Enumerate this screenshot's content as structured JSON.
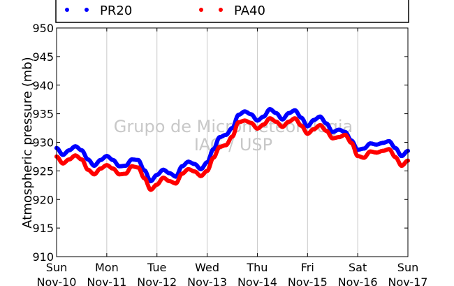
{
  "chart_data": {
    "type": "line",
    "title": "",
    "xlabel": "",
    "ylabel": "Atmospheric pressure (mb)",
    "ylim": [
      910,
      950
    ],
    "yticks": [
      910,
      915,
      920,
      925,
      930,
      935,
      940,
      945,
      950
    ],
    "xlim": [
      0,
      7
    ],
    "x_ticks": [
      {
        "day": "Sun",
        "date": "Nov-10"
      },
      {
        "day": "Mon",
        "date": "Nov-11"
      },
      {
        "day": "Tue",
        "date": "Nov-12"
      },
      {
        "day": "Wed",
        "date": "Nov-13"
      },
      {
        "day": "Thu",
        "date": "Nov-14"
      },
      {
        "day": "Fri",
        "date": "Nov-15"
      },
      {
        "day": "Sat",
        "date": "Nov-16"
      },
      {
        "day": "Sun",
        "date": "Nov-17"
      }
    ],
    "grid": "vertical",
    "legend_position": "top",
    "watermark": [
      "Grupo de Micrometeorologia",
      "IAG / USP"
    ],
    "series": [
      {
        "name": "PR20",
        "color": "#0000ff",
        "x": [
          "Nov-10 00:00",
          "Nov-10 03:00",
          "Nov-10 06:00",
          "Nov-10 09:00",
          "Nov-10 12:00",
          "Nov-10 15:00",
          "Nov-10 18:00",
          "Nov-10 21:00",
          "Nov-11 00:00",
          "Nov-11 03:00",
          "Nov-11 06:00",
          "Nov-11 09:00",
          "Nov-11 12:00",
          "Nov-11 15:00",
          "Nov-11 18:00",
          "Nov-11 21:00",
          "Nov-12 00:00",
          "Nov-12 03:00",
          "Nov-12 06:00",
          "Nov-12 09:00",
          "Nov-12 12:00",
          "Nov-12 15:00",
          "Nov-12 18:00",
          "Nov-12 21:00",
          "Nov-13 00:00",
          "Nov-13 03:00",
          "Nov-13 06:00",
          "Nov-13 09:00",
          "Nov-13 12:00",
          "Nov-13 15:00",
          "Nov-13 18:00",
          "Nov-13 21:00",
          "Nov-14 00:00",
          "Nov-14 03:00",
          "Nov-14 06:00",
          "Nov-14 09:00",
          "Nov-14 12:00",
          "Nov-14 15:00",
          "Nov-14 18:00",
          "Nov-14 21:00",
          "Nov-15 00:00",
          "Nov-15 03:00",
          "Nov-15 06:00",
          "Nov-15 09:00",
          "Nov-15 12:00",
          "Nov-15 15:00",
          "Nov-15 18:00",
          "Nov-15 21:00",
          "Nov-16 00:00",
          "Nov-16 03:00",
          "Nov-16 06:00",
          "Nov-16 09:00",
          "Nov-16 12:00",
          "Nov-16 15:00",
          "Nov-16 18:00",
          "Nov-16 21:00",
          "Nov-17 00:00"
        ],
        "values": [
          929.0,
          927.8,
          928.6,
          929.3,
          928.6,
          927.0,
          925.9,
          926.9,
          927.6,
          926.9,
          925.8,
          925.9,
          927.0,
          926.9,
          925.1,
          923.2,
          924.3,
          925.2,
          924.6,
          924.0,
          925.8,
          926.6,
          926.2,
          925.3,
          926.5,
          928.8,
          930.9,
          931.3,
          932.5,
          934.8,
          935.4,
          934.9,
          933.8,
          934.5,
          935.8,
          935.1,
          934.0,
          935.1,
          935.6,
          934.3,
          932.8,
          933.9,
          934.5,
          933.3,
          931.8,
          932.2,
          931.8,
          930.3,
          928.7,
          928.9,
          929.8,
          929.6,
          929.9,
          930.2,
          929.0,
          927.6,
          928.5
        ]
      },
      {
        "name": "PA40",
        "color": "#ff0000",
        "x": [
          "Nov-10 00:00",
          "Nov-10 03:00",
          "Nov-10 06:00",
          "Nov-10 09:00",
          "Nov-10 12:00",
          "Nov-10 15:00",
          "Nov-10 18:00",
          "Nov-10 21:00",
          "Nov-11 00:00",
          "Nov-11 03:00",
          "Nov-11 06:00",
          "Nov-11 09:00",
          "Nov-11 12:00",
          "Nov-11 15:00",
          "Nov-11 18:00",
          "Nov-11 21:00",
          "Nov-12 00:00",
          "Nov-12 03:00",
          "Nov-12 06:00",
          "Nov-12 09:00",
          "Nov-12 12:00",
          "Nov-12 15:00",
          "Nov-12 18:00",
          "Nov-12 21:00",
          "Nov-13 00:00",
          "Nov-13 03:00",
          "Nov-13 06:00",
          "Nov-13 09:00",
          "Nov-13 12:00",
          "Nov-13 15:00",
          "Nov-13 18:00",
          "Nov-13 21:00",
          "Nov-14 00:00",
          "Nov-14 03:00",
          "Nov-14 06:00",
          "Nov-14 09:00",
          "Nov-14 12:00",
          "Nov-14 15:00",
          "Nov-14 18:00",
          "Nov-14 21:00",
          "Nov-15 00:00",
          "Nov-15 03:00",
          "Nov-15 06:00",
          "Nov-15 09:00",
          "Nov-15 12:00",
          "Nov-15 15:00",
          "Nov-15 18:00",
          "Nov-15 21:00",
          "Nov-16 00:00",
          "Nov-16 03:00",
          "Nov-16 06:00",
          "Nov-16 09:00",
          "Nov-16 12:00",
          "Nov-16 15:00",
          "Nov-16 18:00",
          "Nov-16 21:00",
          "Nov-17 00:00"
        ],
        "values": [
          927.5,
          926.3,
          927.0,
          927.7,
          927.0,
          925.2,
          924.4,
          925.4,
          926.0,
          925.4,
          924.4,
          924.5,
          925.8,
          925.6,
          923.7,
          921.7,
          922.6,
          923.8,
          923.2,
          922.8,
          924.5,
          925.3,
          924.9,
          924.1,
          925.0,
          927.3,
          929.2,
          929.5,
          931.0,
          933.5,
          933.8,
          933.4,
          932.4,
          933.1,
          934.2,
          933.6,
          932.7,
          933.6,
          934.2,
          932.9,
          931.5,
          932.3,
          933.0,
          932.0,
          930.7,
          930.9,
          931.3,
          929.9,
          927.6,
          927.3,
          928.4,
          928.2,
          928.5,
          928.8,
          927.4,
          925.9,
          926.8
        ]
      }
    ]
  }
}
